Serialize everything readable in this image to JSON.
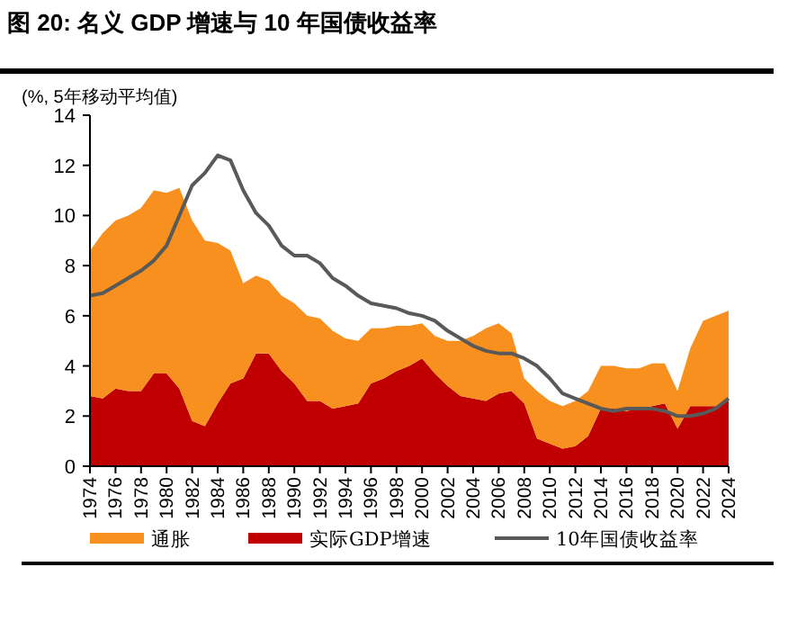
{
  "chart_data": {
    "type": "area",
    "title": "图 20: 名义 GDP 增速与 10 年国债收益率",
    "ylabel": "(%, 5年移动平均值)",
    "stacked": true,
    "x": [
      1974,
      1975,
      1976,
      1977,
      1978,
      1979,
      1980,
      1981,
      1982,
      1983,
      1984,
      1985,
      1986,
      1987,
      1988,
      1989,
      1990,
      1991,
      1992,
      1993,
      1994,
      1995,
      1996,
      1997,
      1998,
      1999,
      2000,
      2001,
      2002,
      2003,
      2004,
      2005,
      2006,
      2007,
      2008,
      2009,
      2010,
      2011,
      2012,
      2013,
      2014,
      2015,
      2016,
      2017,
      2018,
      2019,
      2020,
      2021,
      2022,
      2023,
      2024
    ],
    "series": [
      {
        "name": "实际GDP增速",
        "color": "#c00000",
        "values": [
          2.8,
          2.7,
          3.1,
          3.0,
          3.0,
          3.7,
          3.7,
          3.1,
          1.8,
          1.6,
          2.5,
          3.3,
          3.5,
          4.5,
          4.5,
          3.8,
          3.3,
          2.6,
          2.6,
          2.3,
          2.4,
          2.5,
          3.3,
          3.5,
          3.8,
          4.0,
          4.3,
          3.7,
          3.2,
          2.8,
          2.7,
          2.6,
          2.9,
          3.0,
          2.5,
          1.1,
          0.9,
          0.7,
          0.8,
          1.2,
          2.3,
          2.3,
          2.2,
          2.3,
          2.4,
          2.5,
          1.5,
          2.4,
          2.4,
          2.4,
          2.6
        ]
      },
      {
        "name": "通胀",
        "color": "#f7901e",
        "values": [
          5.8,
          6.6,
          6.7,
          7.0,
          7.3,
          7.3,
          7.2,
          8.0,
          8.0,
          7.4,
          6.4,
          5.3,
          3.8,
          3.1,
          2.9,
          3.0,
          3.2,
          3.4,
          3.3,
          3.1,
          2.7,
          2.5,
          2.2,
          2.0,
          1.8,
          1.6,
          1.4,
          1.5,
          1.8,
          2.2,
          2.5,
          2.9,
          2.8,
          2.3,
          1.0,
          1.9,
          1.7,
          1.7,
          1.8,
          1.8,
          1.7,
          1.7,
          1.7,
          1.6,
          1.7,
          1.6,
          1.5,
          2.3,
          3.4,
          3.6,
          3.6
        ]
      },
      {
        "name": "10年国债收益率",
        "type": "line",
        "color": "#595959",
        "values": [
          6.8,
          6.9,
          7.2,
          7.5,
          7.8,
          8.2,
          8.8,
          10.0,
          11.2,
          11.7,
          12.4,
          12.2,
          11.0,
          10.1,
          9.6,
          8.8,
          8.4,
          8.4,
          8.1,
          7.5,
          7.2,
          6.8,
          6.5,
          6.4,
          6.3,
          6.1,
          6.0,
          5.8,
          5.4,
          5.1,
          4.8,
          4.6,
          4.5,
          4.5,
          4.3,
          4.0,
          3.5,
          2.9,
          2.7,
          2.5,
          2.3,
          2.2,
          2.3,
          2.3,
          2.3,
          2.2,
          2.0,
          2.0,
          2.1,
          2.3,
          2.7
        ]
      }
    ],
    "xlim": [
      1974,
      2024
    ],
    "xticks": [
      1974,
      1976,
      1978,
      1980,
      1982,
      1984,
      1986,
      1988,
      1990,
      1992,
      1994,
      1996,
      1998,
      2000,
      2002,
      2004,
      2006,
      2008,
      2010,
      2012,
      2014,
      2016,
      2018,
      2020,
      2022,
      2024
    ],
    "ylim": [
      0,
      14
    ],
    "yticks": [
      0,
      2,
      4,
      6,
      8,
      10,
      12,
      14
    ],
    "grid": false,
    "legend": "bottom"
  }
}
